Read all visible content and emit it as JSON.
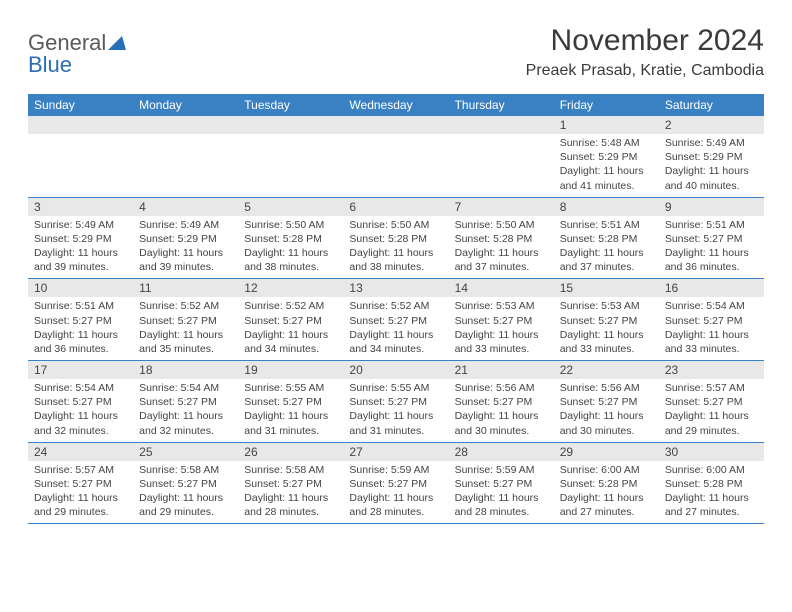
{
  "logo": {
    "text1": "General",
    "text2": "Blue"
  },
  "title": "November 2024",
  "location": "Preaek Prasab, Kratie, Cambodia",
  "colors": {
    "header_bg": "#3a81c4",
    "header_text": "#ffffff",
    "daynum_bg": "#e8e8e8",
    "text": "#444444",
    "row_border": "#3a81c4",
    "logo_gray": "#5a5a5a",
    "logo_blue": "#2a6db8"
  },
  "day_names": [
    "Sunday",
    "Monday",
    "Tuesday",
    "Wednesday",
    "Thursday",
    "Friday",
    "Saturday"
  ],
  "weeks": [
    [
      {
        "blank": true
      },
      {
        "blank": true
      },
      {
        "blank": true
      },
      {
        "blank": true
      },
      {
        "blank": true
      },
      {
        "num": "1",
        "sunrise": "Sunrise: 5:48 AM",
        "sunset": "Sunset: 5:29 PM",
        "daylight": "Daylight: 11 hours and 41 minutes."
      },
      {
        "num": "2",
        "sunrise": "Sunrise: 5:49 AM",
        "sunset": "Sunset: 5:29 PM",
        "daylight": "Daylight: 11 hours and 40 minutes."
      }
    ],
    [
      {
        "num": "3",
        "sunrise": "Sunrise: 5:49 AM",
        "sunset": "Sunset: 5:29 PM",
        "daylight": "Daylight: 11 hours and 39 minutes."
      },
      {
        "num": "4",
        "sunrise": "Sunrise: 5:49 AM",
        "sunset": "Sunset: 5:29 PM",
        "daylight": "Daylight: 11 hours and 39 minutes."
      },
      {
        "num": "5",
        "sunrise": "Sunrise: 5:50 AM",
        "sunset": "Sunset: 5:28 PM",
        "daylight": "Daylight: 11 hours and 38 minutes."
      },
      {
        "num": "6",
        "sunrise": "Sunrise: 5:50 AM",
        "sunset": "Sunset: 5:28 PM",
        "daylight": "Daylight: 11 hours and 38 minutes."
      },
      {
        "num": "7",
        "sunrise": "Sunrise: 5:50 AM",
        "sunset": "Sunset: 5:28 PM",
        "daylight": "Daylight: 11 hours and 37 minutes."
      },
      {
        "num": "8",
        "sunrise": "Sunrise: 5:51 AM",
        "sunset": "Sunset: 5:28 PM",
        "daylight": "Daylight: 11 hours and 37 minutes."
      },
      {
        "num": "9",
        "sunrise": "Sunrise: 5:51 AM",
        "sunset": "Sunset: 5:27 PM",
        "daylight": "Daylight: 11 hours and 36 minutes."
      }
    ],
    [
      {
        "num": "10",
        "sunrise": "Sunrise: 5:51 AM",
        "sunset": "Sunset: 5:27 PM",
        "daylight": "Daylight: 11 hours and 36 minutes."
      },
      {
        "num": "11",
        "sunrise": "Sunrise: 5:52 AM",
        "sunset": "Sunset: 5:27 PM",
        "daylight": "Daylight: 11 hours and 35 minutes."
      },
      {
        "num": "12",
        "sunrise": "Sunrise: 5:52 AM",
        "sunset": "Sunset: 5:27 PM",
        "daylight": "Daylight: 11 hours and 34 minutes."
      },
      {
        "num": "13",
        "sunrise": "Sunrise: 5:52 AM",
        "sunset": "Sunset: 5:27 PM",
        "daylight": "Daylight: 11 hours and 34 minutes."
      },
      {
        "num": "14",
        "sunrise": "Sunrise: 5:53 AM",
        "sunset": "Sunset: 5:27 PM",
        "daylight": "Daylight: 11 hours and 33 minutes."
      },
      {
        "num": "15",
        "sunrise": "Sunrise: 5:53 AM",
        "sunset": "Sunset: 5:27 PM",
        "daylight": "Daylight: 11 hours and 33 minutes."
      },
      {
        "num": "16",
        "sunrise": "Sunrise: 5:54 AM",
        "sunset": "Sunset: 5:27 PM",
        "daylight": "Daylight: 11 hours and 33 minutes."
      }
    ],
    [
      {
        "num": "17",
        "sunrise": "Sunrise: 5:54 AM",
        "sunset": "Sunset: 5:27 PM",
        "daylight": "Daylight: 11 hours and 32 minutes."
      },
      {
        "num": "18",
        "sunrise": "Sunrise: 5:54 AM",
        "sunset": "Sunset: 5:27 PM",
        "daylight": "Daylight: 11 hours and 32 minutes."
      },
      {
        "num": "19",
        "sunrise": "Sunrise: 5:55 AM",
        "sunset": "Sunset: 5:27 PM",
        "daylight": "Daylight: 11 hours and 31 minutes."
      },
      {
        "num": "20",
        "sunrise": "Sunrise: 5:55 AM",
        "sunset": "Sunset: 5:27 PM",
        "daylight": "Daylight: 11 hours and 31 minutes."
      },
      {
        "num": "21",
        "sunrise": "Sunrise: 5:56 AM",
        "sunset": "Sunset: 5:27 PM",
        "daylight": "Daylight: 11 hours and 30 minutes."
      },
      {
        "num": "22",
        "sunrise": "Sunrise: 5:56 AM",
        "sunset": "Sunset: 5:27 PM",
        "daylight": "Daylight: 11 hours and 30 minutes."
      },
      {
        "num": "23",
        "sunrise": "Sunrise: 5:57 AM",
        "sunset": "Sunset: 5:27 PM",
        "daylight": "Daylight: 11 hours and 29 minutes."
      }
    ],
    [
      {
        "num": "24",
        "sunrise": "Sunrise: 5:57 AM",
        "sunset": "Sunset: 5:27 PM",
        "daylight": "Daylight: 11 hours and 29 minutes."
      },
      {
        "num": "25",
        "sunrise": "Sunrise: 5:58 AM",
        "sunset": "Sunset: 5:27 PM",
        "daylight": "Daylight: 11 hours and 29 minutes."
      },
      {
        "num": "26",
        "sunrise": "Sunrise: 5:58 AM",
        "sunset": "Sunset: 5:27 PM",
        "daylight": "Daylight: 11 hours and 28 minutes."
      },
      {
        "num": "27",
        "sunrise": "Sunrise: 5:59 AM",
        "sunset": "Sunset: 5:27 PM",
        "daylight": "Daylight: 11 hours and 28 minutes."
      },
      {
        "num": "28",
        "sunrise": "Sunrise: 5:59 AM",
        "sunset": "Sunset: 5:27 PM",
        "daylight": "Daylight: 11 hours and 28 minutes."
      },
      {
        "num": "29",
        "sunrise": "Sunrise: 6:00 AM",
        "sunset": "Sunset: 5:28 PM",
        "daylight": "Daylight: 11 hours and 27 minutes."
      },
      {
        "num": "30",
        "sunrise": "Sunrise: 6:00 AM",
        "sunset": "Sunset: 5:28 PM",
        "daylight": "Daylight: 11 hours and 27 minutes."
      }
    ]
  ]
}
